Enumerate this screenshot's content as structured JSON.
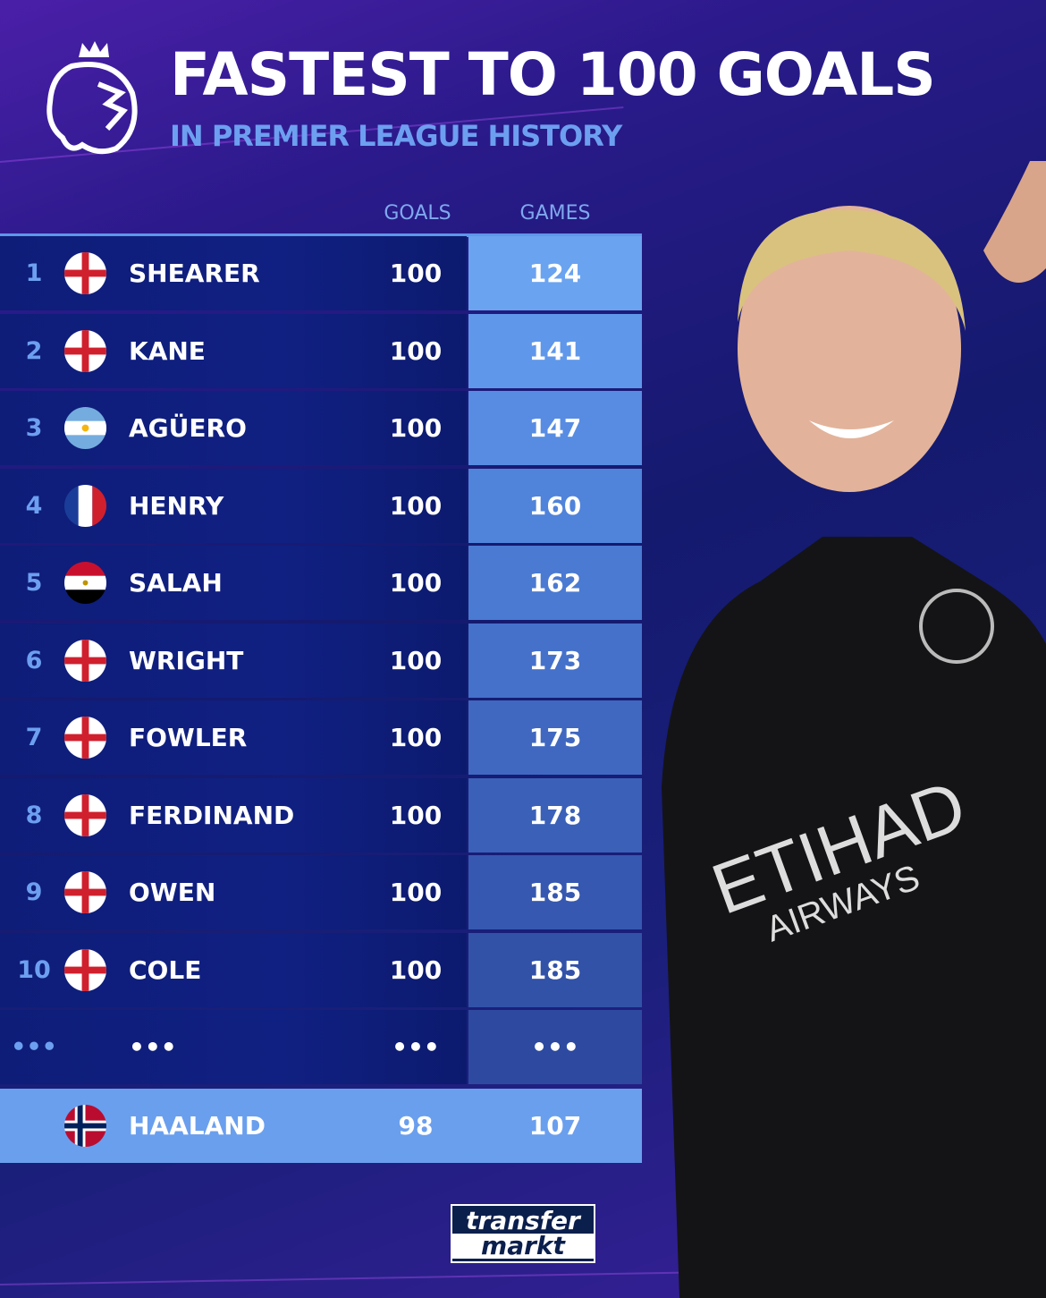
{
  "header": {
    "title": "FASTEST TO 100 GOALS",
    "subtitle": "IN PREMIER LEAGUE HISTORY"
  },
  "columns": {
    "goals": "GOALS",
    "games": "GAMES"
  },
  "rows": [
    {
      "rank": "1",
      "flag": "england",
      "name": "SHEARER",
      "goals": "100",
      "games": "124",
      "color": "#6aa3f0"
    },
    {
      "rank": "2",
      "flag": "england",
      "name": "KANE",
      "goals": "100",
      "games": "141",
      "color": "#5f97ea"
    },
    {
      "rank": "3",
      "flag": "argentina",
      "name": "AGÜERO",
      "goals": "100",
      "games": "147",
      "color": "#578ce2"
    },
    {
      "rank": "4",
      "flag": "france",
      "name": "HENRY",
      "goals": "100",
      "games": "160",
      "color": "#5083da"
    },
    {
      "rank": "5",
      "flag": "egypt",
      "name": "SALAH",
      "goals": "100",
      "games": "162",
      "color": "#4a7ad2"
    },
    {
      "rank": "6",
      "flag": "england",
      "name": "WRIGHT",
      "goals": "100",
      "games": "173",
      "color": "#4571ca"
    },
    {
      "rank": "7",
      "flag": "england",
      "name": "FOWLER",
      "goals": "100",
      "games": "175",
      "color": "#4068c0"
    },
    {
      "rank": "8",
      "flag": "england",
      "name": "FERDINAND",
      "goals": "100",
      "games": "178",
      "color": "#3b60b8"
    },
    {
      "rank": "9",
      "flag": "england",
      "name": "OWEN",
      "goals": "100",
      "games": "185",
      "color": "#3658b0"
    },
    {
      "rank": "10",
      "flag": "england",
      "name": "COLE",
      "goals": "100",
      "games": "185",
      "color": "#3252a8"
    },
    {
      "rank": "•••",
      "flag": "",
      "name": "•••",
      "goals": "•••",
      "games": "•••",
      "color": "#2d4aa0"
    }
  ],
  "highlight": {
    "flag": "norway",
    "name": "HAALAND",
    "goals": "98",
    "games": "107"
  },
  "logos": {
    "league": "Premier League lion",
    "brand_top": "transfer",
    "brand_bottom": "markt"
  }
}
